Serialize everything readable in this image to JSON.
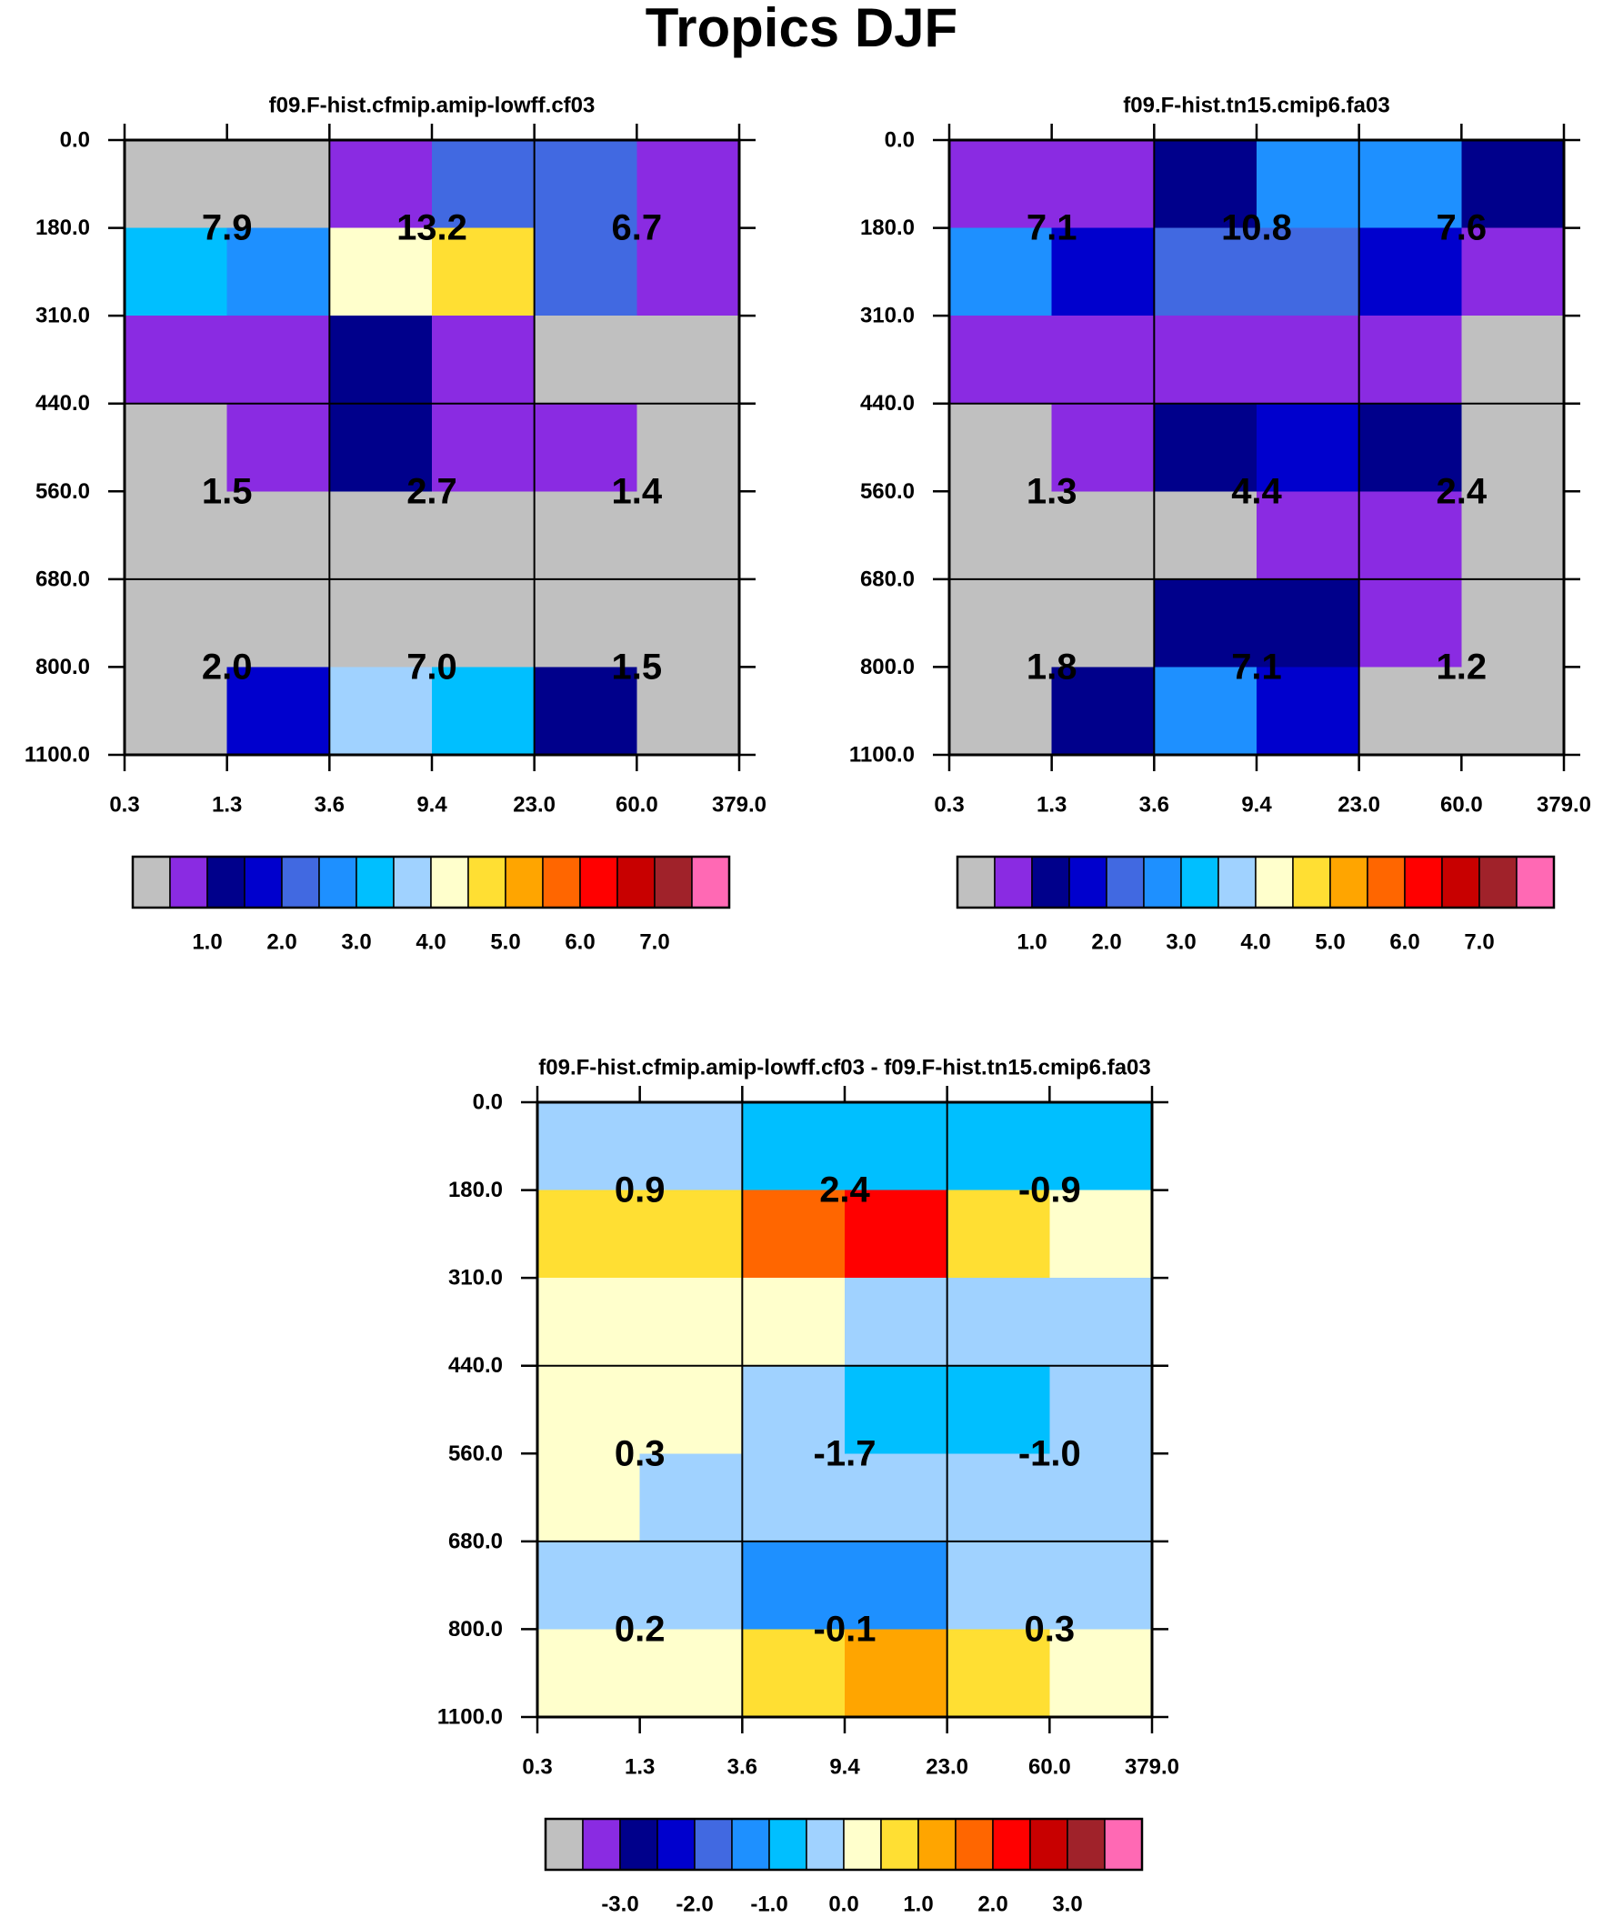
{
  "title": "Tropics DJF",
  "colors": {
    "palette": [
      "#c0c0c0",
      "#8a2be2",
      "#00008b",
      "#0000cd",
      "#4169e1",
      "#1e90ff",
      "#00bfff",
      "#a0d2ff",
      "#ffffcc",
      "#ffdf33",
      "#ffa500",
      "#ff6600",
      "#ff0000",
      "#c80000",
      "#a0222a",
      "#ff69b4"
    ]
  },
  "chart_data": [
    {
      "type": "heatmap",
      "title": "f09.F-hist.cfmip.amip-lowff.cf03",
      "x_ticks": [
        "0.3",
        "1.3",
        "3.6",
        "9.4",
        "23.0",
        "60.0",
        "379.0"
      ],
      "y_ticks": [
        "0.0",
        "180.0",
        "310.0",
        "440.0",
        "560.0",
        "680.0",
        "800.0",
        "1100.0"
      ],
      "cells": [
        [
          0,
          0,
          1,
          4,
          4,
          1
        ],
        [
          6,
          5,
          8,
          9,
          4,
          1
        ],
        [
          1,
          1,
          2,
          1,
          0,
          0
        ],
        [
          0,
          1,
          2,
          1,
          1,
          0
        ],
        [
          0,
          0,
          0,
          0,
          0,
          0
        ],
        [
          0,
          0,
          0,
          0,
          0,
          0
        ],
        [
          0,
          3,
          7,
          6,
          2,
          0
        ]
      ],
      "annotations": [
        [
          "7.9",
          "13.2",
          "6.7"
        ],
        [
          "1.5",
          "2.7",
          "1.4"
        ],
        [
          "2.0",
          "7.0",
          "1.5"
        ]
      ],
      "colorbar": {
        "labels": [
          "1.0",
          "2.0",
          "3.0",
          "4.0",
          "5.0",
          "6.0",
          "7.0"
        ]
      }
    },
    {
      "type": "heatmap",
      "title": "f09.F-hist.tn15.cmip6.fa03",
      "x_ticks": [
        "0.3",
        "1.3",
        "3.6",
        "9.4",
        "23.0",
        "60.0",
        "379.0"
      ],
      "y_ticks": [
        "0.0",
        "180.0",
        "310.0",
        "440.0",
        "560.0",
        "680.0",
        "800.0",
        "1100.0"
      ],
      "cells": [
        [
          1,
          1,
          2,
          5,
          5,
          2
        ],
        [
          5,
          3,
          4,
          4,
          3,
          1
        ],
        [
          1,
          1,
          1,
          1,
          1,
          0
        ],
        [
          0,
          1,
          2,
          3,
          2,
          0
        ],
        [
          0,
          0,
          0,
          1,
          1,
          0
        ],
        [
          0,
          0,
          2,
          2,
          1,
          0
        ],
        [
          0,
          2,
          5,
          3,
          0,
          0
        ]
      ],
      "annotations": [
        [
          "7.1",
          "10.8",
          "7.6"
        ],
        [
          "1.3",
          "4.4",
          "2.4"
        ],
        [
          "1.8",
          "7.1",
          "1.2"
        ]
      ],
      "colorbar": {
        "labels": [
          "1.0",
          "2.0",
          "3.0",
          "4.0",
          "5.0",
          "6.0",
          "7.0"
        ]
      }
    },
    {
      "type": "heatmap",
      "title": "f09.F-hist.cfmip.amip-lowff.cf03 - f09.F-hist.tn15.cmip6.fa03",
      "x_ticks": [
        "0.3",
        "1.3",
        "3.6",
        "9.4",
        "23.0",
        "60.0",
        "379.0"
      ],
      "y_ticks": [
        "0.0",
        "180.0",
        "310.0",
        "440.0",
        "560.0",
        "680.0",
        "800.0",
        "1100.0"
      ],
      "cells": [
        [
          7,
          7,
          6,
          6,
          6,
          6
        ],
        [
          9,
          9,
          11,
          12,
          9,
          8
        ],
        [
          8,
          8,
          8,
          7,
          7,
          7
        ],
        [
          8,
          8,
          7,
          6,
          6,
          7
        ],
        [
          8,
          7,
          7,
          7,
          7,
          7
        ],
        [
          7,
          7,
          5,
          5,
          7,
          7
        ],
        [
          8,
          8,
          9,
          10,
          9,
          8
        ]
      ],
      "annotations": [
        [
          "0.9",
          "2.4",
          "-0.9"
        ],
        [
          "0.3",
          "-1.7",
          "-1.0"
        ],
        [
          "0.2",
          "-0.1",
          "0.3"
        ]
      ],
      "colorbar": {
        "labels": [
          "-3.0",
          "-2.0",
          "-1.0",
          "0.0",
          "1.0",
          "2.0",
          "3.0"
        ]
      }
    }
  ]
}
